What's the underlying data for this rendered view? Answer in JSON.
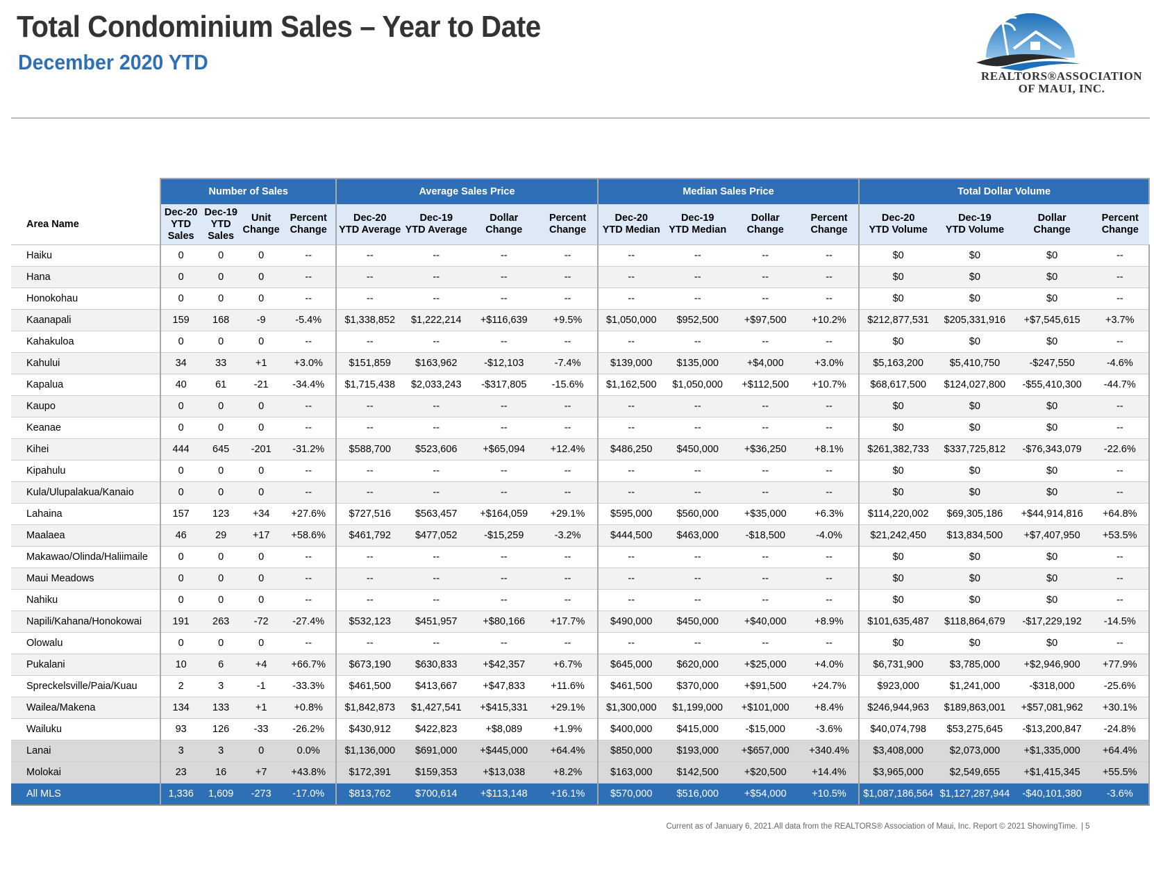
{
  "header": {
    "title": "Total Condominium Sales – Year to Date",
    "subtitle": "December 2020 YTD",
    "logo_line1": "REALTORS®ASSOCIATION",
    "logo_line2": "OF MAUI, INC."
  },
  "colors": {
    "accent": "#2f6fb6",
    "subheader_bg": "#dde9f7",
    "title": "#333333"
  },
  "table": {
    "area_header": "Area Name",
    "groups": [
      "Number of Sales",
      "Average Sales Price",
      "Median Sales Price",
      "Total Dollar Volume"
    ],
    "subheaders": [
      [
        "Dec-20",
        "YTD",
        "Sales"
      ],
      [
        "Dec-19",
        "YTD",
        "Sales"
      ],
      [
        "Unit",
        "Change"
      ],
      [
        "Percent",
        "Change"
      ],
      [
        "Dec-20",
        "YTD Average"
      ],
      [
        "Dec-19",
        "YTD Average"
      ],
      [
        "Dollar",
        "Change"
      ],
      [
        "Percent",
        "Change"
      ],
      [
        "Dec-20",
        "YTD Median"
      ],
      [
        "Dec-19",
        "YTD Median"
      ],
      [
        "Dollar",
        "Change"
      ],
      [
        "Percent",
        "Change"
      ],
      [
        "Dec-20",
        "YTD Volume"
      ],
      [
        "Dec-19",
        "YTD Volume"
      ],
      [
        "Dollar",
        "Change"
      ],
      [
        "Percent",
        "Change"
      ]
    ],
    "rows": [
      [
        "Haiku",
        "0",
        "0",
        "0",
        "--",
        "--",
        "--",
        "--",
        "--",
        "--",
        "--",
        "--",
        "--",
        "$0",
        "$0",
        "$0",
        "--"
      ],
      [
        "Hana",
        "0",
        "0",
        "0",
        "--",
        "--",
        "--",
        "--",
        "--",
        "--",
        "--",
        "--",
        "--",
        "$0",
        "$0",
        "$0",
        "--"
      ],
      [
        "Honokohau",
        "0",
        "0",
        "0",
        "--",
        "--",
        "--",
        "--",
        "--",
        "--",
        "--",
        "--",
        "--",
        "$0",
        "$0",
        "$0",
        "--"
      ],
      [
        "Kaanapali",
        "159",
        "168",
        "-9",
        "-5.4%",
        "$1,338,852",
        "$1,222,214",
        "+$116,639",
        "+9.5%",
        "$1,050,000",
        "$952,500",
        "+$97,500",
        "+10.2%",
        "$212,877,531",
        "$205,331,916",
        "+$7,545,615",
        "+3.7%"
      ],
      [
        "Kahakuloa",
        "0",
        "0",
        "0",
        "--",
        "--",
        "--",
        "--",
        "--",
        "--",
        "--",
        "--",
        "--",
        "$0",
        "$0",
        "$0",
        "--"
      ],
      [
        "Kahului",
        "34",
        "33",
        "+1",
        "+3.0%",
        "$151,859",
        "$163,962",
        "-$12,103",
        "-7.4%",
        "$139,000",
        "$135,000",
        "+$4,000",
        "+3.0%",
        "$5,163,200",
        "$5,410,750",
        "-$247,550",
        "-4.6%"
      ],
      [
        "Kapalua",
        "40",
        "61",
        "-21",
        "-34.4%",
        "$1,715,438",
        "$2,033,243",
        "-$317,805",
        "-15.6%",
        "$1,162,500",
        "$1,050,000",
        "+$112,500",
        "+10.7%",
        "$68,617,500",
        "$124,027,800",
        "-$55,410,300",
        "-44.7%"
      ],
      [
        "Kaupo",
        "0",
        "0",
        "0",
        "--",
        "--",
        "--",
        "--",
        "--",
        "--",
        "--",
        "--",
        "--",
        "$0",
        "$0",
        "$0",
        "--"
      ],
      [
        "Keanae",
        "0",
        "0",
        "0",
        "--",
        "--",
        "--",
        "--",
        "--",
        "--",
        "--",
        "--",
        "--",
        "$0",
        "$0",
        "$0",
        "--"
      ],
      [
        "Kihei",
        "444",
        "645",
        "-201",
        "-31.2%",
        "$588,700",
        "$523,606",
        "+$65,094",
        "+12.4%",
        "$486,250",
        "$450,000",
        "+$36,250",
        "+8.1%",
        "$261,382,733",
        "$337,725,812",
        "-$76,343,079",
        "-22.6%"
      ],
      [
        "Kipahulu",
        "0",
        "0",
        "0",
        "--",
        "--",
        "--",
        "--",
        "--",
        "--",
        "--",
        "--",
        "--",
        "$0",
        "$0",
        "$0",
        "--"
      ],
      [
        "Kula/Ulupalakua/Kanaio",
        "0",
        "0",
        "0",
        "--",
        "--",
        "--",
        "--",
        "--",
        "--",
        "--",
        "--",
        "--",
        "$0",
        "$0",
        "$0",
        "--"
      ],
      [
        "Lahaina",
        "157",
        "123",
        "+34",
        "+27.6%",
        "$727,516",
        "$563,457",
        "+$164,059",
        "+29.1%",
        "$595,000",
        "$560,000",
        "+$35,000",
        "+6.3%",
        "$114,220,002",
        "$69,305,186",
        "+$44,914,816",
        "+64.8%"
      ],
      [
        "Maalaea",
        "46",
        "29",
        "+17",
        "+58.6%",
        "$461,792",
        "$477,052",
        "-$15,259",
        "-3.2%",
        "$444,500",
        "$463,000",
        "-$18,500",
        "-4.0%",
        "$21,242,450",
        "$13,834,500",
        "+$7,407,950",
        "+53.5%"
      ],
      [
        "Makawao/Olinda/Haliimaile",
        "0",
        "0",
        "0",
        "--",
        "--",
        "--",
        "--",
        "--",
        "--",
        "--",
        "--",
        "--",
        "$0",
        "$0",
        "$0",
        "--"
      ],
      [
        "Maui Meadows",
        "0",
        "0",
        "0",
        "--",
        "--",
        "--",
        "--",
        "--",
        "--",
        "--",
        "--",
        "--",
        "$0",
        "$0",
        "$0",
        "--"
      ],
      [
        "Nahiku",
        "0",
        "0",
        "0",
        "--",
        "--",
        "--",
        "--",
        "--",
        "--",
        "--",
        "--",
        "--",
        "$0",
        "$0",
        "$0",
        "--"
      ],
      [
        "Napili/Kahana/Honokowai",
        "191",
        "263",
        "-72",
        "-27.4%",
        "$532,123",
        "$451,957",
        "+$80,166",
        "+17.7%",
        "$490,000",
        "$450,000",
        "+$40,000",
        "+8.9%",
        "$101,635,487",
        "$118,864,679",
        "-$17,229,192",
        "-14.5%"
      ],
      [
        "Olowalu",
        "0",
        "0",
        "0",
        "--",
        "--",
        "--",
        "--",
        "--",
        "--",
        "--",
        "--",
        "--",
        "$0",
        "$0",
        "$0",
        "--"
      ],
      [
        "Pukalani",
        "10",
        "6",
        "+4",
        "+66.7%",
        "$673,190",
        "$630,833",
        "+$42,357",
        "+6.7%",
        "$645,000",
        "$620,000",
        "+$25,000",
        "+4.0%",
        "$6,731,900",
        "$3,785,000",
        "+$2,946,900",
        "+77.9%"
      ],
      [
        "Spreckelsville/Paia/Kuau",
        "2",
        "3",
        "-1",
        "-33.3%",
        "$461,500",
        "$413,667",
        "+$47,833",
        "+11.6%",
        "$461,500",
        "$370,000",
        "+$91,500",
        "+24.7%",
        "$923,000",
        "$1,241,000",
        "-$318,000",
        "-25.6%"
      ],
      [
        "Wailea/Makena",
        "134",
        "133",
        "+1",
        "+0.8%",
        "$1,842,873",
        "$1,427,541",
        "+$415,331",
        "+29.1%",
        "$1,300,000",
        "$1,199,000",
        "+$101,000",
        "+8.4%",
        "$246,944,963",
        "$189,863,001",
        "+$57,081,962",
        "+30.1%"
      ],
      [
        "Wailuku",
        "93",
        "126",
        "-33",
        "-26.2%",
        "$430,912",
        "$422,823",
        "+$8,089",
        "+1.9%",
        "$400,000",
        "$415,000",
        "-$15,000",
        "-3.6%",
        "$40,074,798",
        "$53,275,645",
        "-$13,200,847",
        "-24.8%"
      ],
      [
        "Lanai",
        "3",
        "3",
        "0",
        "0.0%",
        "$1,136,000",
        "$691,000",
        "+$445,000",
        "+64.4%",
        "$850,000",
        "$193,000",
        "+$657,000",
        "+340.4%",
        "$3,408,000",
        "$2,073,000",
        "+$1,335,000",
        "+64.4%"
      ],
      [
        "Molokai",
        "23",
        "16",
        "+7",
        "+43.8%",
        "$172,391",
        "$159,353",
        "+$13,038",
        "+8.2%",
        "$163,000",
        "$142,500",
        "+$20,500",
        "+14.4%",
        "$3,965,000",
        "$2,549,655",
        "+$1,415,345",
        "+55.5%"
      ],
      [
        "All MLS",
        "1,336",
        "1,609",
        "-273",
        "-17.0%",
        "$813,762",
        "$700,614",
        "+$113,148",
        "+16.1%",
        "$570,000",
        "$516,000",
        "+$54,000",
        "+10.5%",
        "$1,087,186,564",
        "$1,127,287,944",
        "-$40,101,380",
        "-3.6%"
      ]
    ]
  },
  "footer": {
    "note": "Current as of January 6, 2021.All data from the REALTORS® Association of Maui, Inc. Report © 2021 ShowingTime.",
    "page": "| 5"
  }
}
